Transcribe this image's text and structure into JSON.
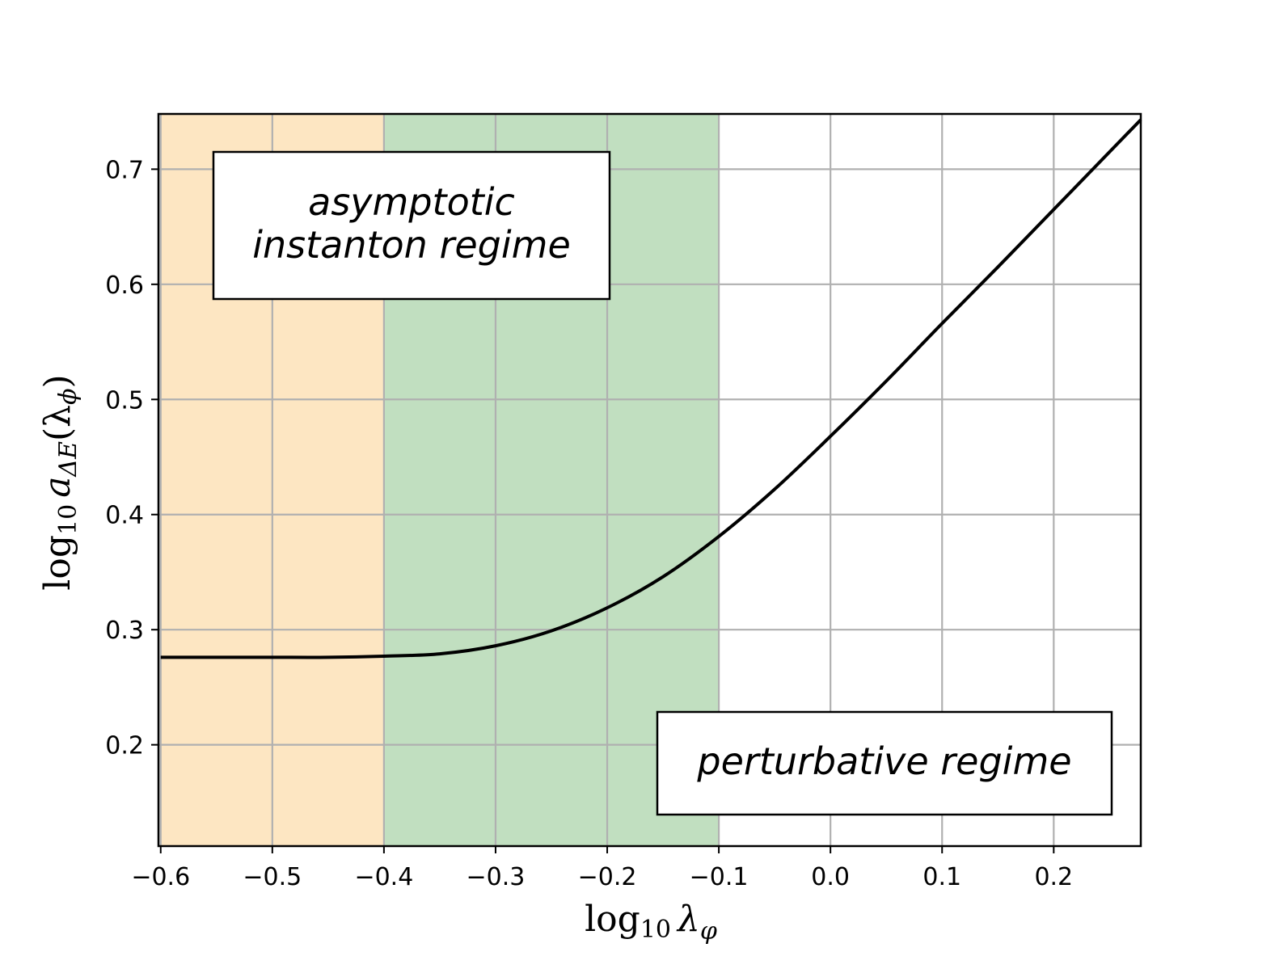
{
  "chart_data": {
    "type": "line",
    "xlabel": "log₁₀ λ_φ",
    "ylabel": "log₁₀ a_ΔE(λ_φ)",
    "xlabel_parts": {
      "base": "log",
      "sub": "10",
      "var": "λ",
      "var_sub": "φ"
    },
    "ylabel_parts": {
      "base": "log",
      "sub": "10",
      "var": "a",
      "var_sub": "ΔE",
      "arg": "(λ",
      "arg_sub": "ϕ",
      "close": ")"
    },
    "xlim": [
      -0.602,
      0.278
    ],
    "ylim": [
      0.112,
      0.748
    ],
    "xticks": [
      -0.6,
      -0.5,
      -0.4,
      -0.3,
      -0.2,
      -0.1,
      0.0,
      0.1,
      0.2
    ],
    "xtick_labels": [
      "−0.6",
      "−0.5",
      "−0.4",
      "−0.3",
      "−0.2",
      "−0.1",
      "0.0",
      "0.1",
      "0.2"
    ],
    "yticks": [
      0.2,
      0.3,
      0.4,
      0.5,
      0.6,
      0.7
    ],
    "ytick_labels": [
      "0.2",
      "0.3",
      "0.4",
      "0.5",
      "0.6",
      "0.7"
    ],
    "grid": true,
    "regions": [
      {
        "x0": -0.6,
        "x1": -0.4,
        "color": "#fde6c2"
      },
      {
        "x0": -0.4,
        "x1": -0.1,
        "color": "#c1dfc0"
      }
    ],
    "series": [
      {
        "color": "#000000",
        "x": [
          -0.6,
          -0.55,
          -0.5,
          -0.45,
          -0.4,
          -0.35,
          -0.3,
          -0.25,
          -0.2,
          -0.15,
          -0.1,
          -0.05,
          0.0,
          0.05,
          0.1,
          0.15,
          0.2,
          0.25,
          0.278
        ],
        "y": [
          0.276,
          0.276,
          0.276,
          0.276,
          0.277,
          0.279,
          0.286,
          0.299,
          0.319,
          0.346,
          0.381,
          0.422,
          0.468,
          0.516,
          0.566,
          0.615,
          0.665,
          0.715,
          0.743
        ]
      }
    ],
    "annotations": [
      {
        "lines": [
          "asymptotic",
          "instanton regime"
        ],
        "position": "top-left"
      },
      {
        "lines": [
          "perturbative regime"
        ],
        "position": "bottom-right"
      }
    ]
  }
}
